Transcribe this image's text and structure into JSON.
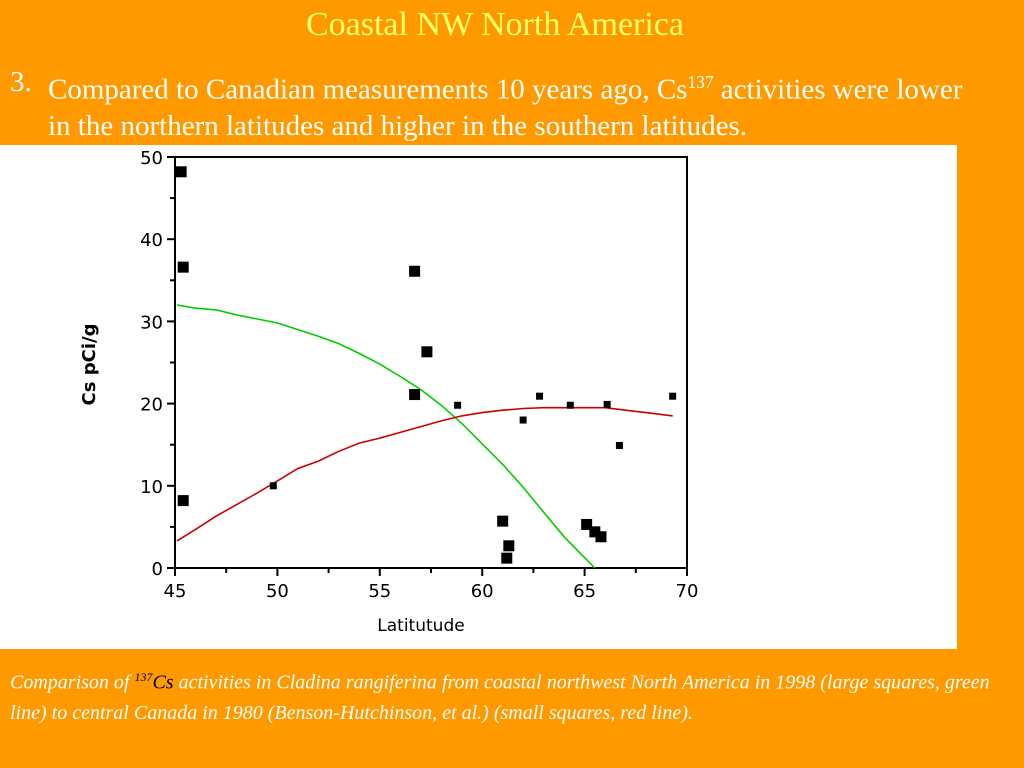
{
  "slide": {
    "title": "Coastal NW North America",
    "bullet_number": "3.",
    "bullet_text_before": "Compared to Canadian measurements 10 years ago, Cs",
    "bullet_sup": "137",
    "bullet_text_after": " activities were lower in the northern latitudes and higher in the southern latitudes.",
    "caption_before": "Comparison of ",
    "caption_sup": "137",
    "caption_cs": "Cs",
    "caption_after": " activities in Cladina rangiferina from coastal northwest North America in 1998 (large squares, green line) to central Canada in 1980 (Benson-Hutchinson, et al.) (small squares, red line)."
  },
  "colors": {
    "background": "#FF9900",
    "title": "#FFFF66",
    "coastal_line": "#00CC00",
    "canada_line": "#CC0000",
    "points": "#000000"
  },
  "chart_data": {
    "type": "scatter",
    "xlabel": "Latitutude",
    "ylabel": "Cs pCi/g",
    "xlim": [
      45,
      70
    ],
    "ylim": [
      0,
      50
    ],
    "xticks": [
      45,
      50,
      55,
      60,
      65,
      70
    ],
    "yticks": [
      0,
      10,
      20,
      30,
      40,
      50
    ],
    "grid": false,
    "series": [
      {
        "marker": "large-square",
        "points": [
          [
            45.3,
            48.2
          ],
          [
            45.4,
            36.6
          ],
          [
            45.4,
            8.2
          ],
          [
            56.7,
            36.1
          ],
          [
            57.3,
            26.3
          ],
          [
            56.7,
            21.1
          ],
          [
            61.0,
            5.7
          ],
          [
            61.3,
            2.7
          ],
          [
            61.2,
            1.2
          ],
          [
            65.1,
            5.3
          ],
          [
            65.5,
            4.4
          ],
          [
            65.8,
            3.8
          ]
        ],
        "fit": [
          [
            45.1,
            32.0
          ],
          [
            46.0,
            31.6
          ],
          [
            47.0,
            31.4
          ],
          [
            48.0,
            30.8
          ],
          [
            49.0,
            30.3
          ],
          [
            50.0,
            29.8
          ],
          [
            51.0,
            29.0
          ],
          [
            52.0,
            28.2
          ],
          [
            53.0,
            27.3
          ],
          [
            54.0,
            26.1
          ],
          [
            55.0,
            24.8
          ],
          [
            56.0,
            23.3
          ],
          [
            57.0,
            21.7
          ],
          [
            58.0,
            19.8
          ],
          [
            59.0,
            17.6
          ],
          [
            60.0,
            15.1
          ],
          [
            61.0,
            12.6
          ],
          [
            62.0,
            9.8
          ],
          [
            63.0,
            6.8
          ],
          [
            64.0,
            3.8
          ],
          [
            65.5,
            0.0
          ]
        ]
      },
      {
        "marker": "small-square",
        "points": [
          [
            49.8,
            10.0
          ],
          [
            58.8,
            19.8
          ],
          [
            62.0,
            18.0
          ],
          [
            62.8,
            20.9
          ],
          [
            64.3,
            19.8
          ],
          [
            66.1,
            19.9
          ],
          [
            66.7,
            14.9
          ],
          [
            69.3,
            20.9
          ]
        ],
        "fit": [
          [
            45.1,
            3.3
          ],
          [
            46.0,
            4.7
          ],
          [
            47.0,
            6.3
          ],
          [
            48.0,
            7.7
          ],
          [
            49.0,
            9.1
          ],
          [
            50.0,
            10.6
          ],
          [
            51.0,
            12.1
          ],
          [
            52.0,
            13.0
          ],
          [
            53.0,
            14.2
          ],
          [
            54.0,
            15.2
          ],
          [
            55.0,
            15.8
          ],
          [
            56.0,
            16.5
          ],
          [
            57.0,
            17.2
          ],
          [
            58.0,
            17.9
          ],
          [
            59.0,
            18.5
          ],
          [
            60.0,
            18.9
          ],
          [
            61.0,
            19.2
          ],
          [
            62.0,
            19.4
          ],
          [
            63.0,
            19.5
          ],
          [
            64.0,
            19.5
          ],
          [
            65.0,
            19.5
          ],
          [
            66.0,
            19.5
          ],
          [
            67.0,
            19.2
          ],
          [
            68.0,
            18.9
          ],
          [
            69.3,
            18.5
          ]
        ]
      }
    ]
  }
}
